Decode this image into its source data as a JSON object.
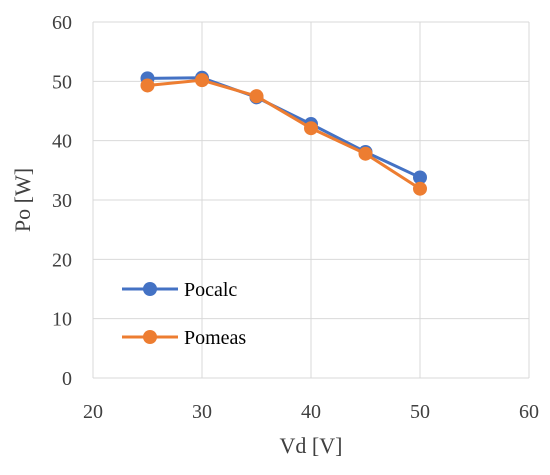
{
  "chart_data": {
    "type": "line",
    "title": "",
    "xlabel": "Vd [V]",
    "ylabel": "Po [W]",
    "xlim": [
      20,
      60
    ],
    "ylim": [
      0,
      60
    ],
    "xticks": [
      20,
      30,
      40,
      50,
      60
    ],
    "yticks": [
      0,
      10,
      20,
      30,
      40,
      50,
      60
    ],
    "grid": true,
    "legend": "bottom-left",
    "series": [
      {
        "name": "Pocalc",
        "color": "#4472C4",
        "x": [
          25,
          30,
          35,
          40,
          45,
          50
        ],
        "y": [
          50.5,
          50.6,
          47.3,
          42.8,
          38.1,
          33.8
        ]
      },
      {
        "name": "Pomeas",
        "color": "#ED7D31",
        "x": [
          25,
          30,
          35,
          40,
          45,
          50
        ],
        "y": [
          49.3,
          50.2,
          47.5,
          42.1,
          37.8,
          31.9
        ]
      }
    ]
  }
}
